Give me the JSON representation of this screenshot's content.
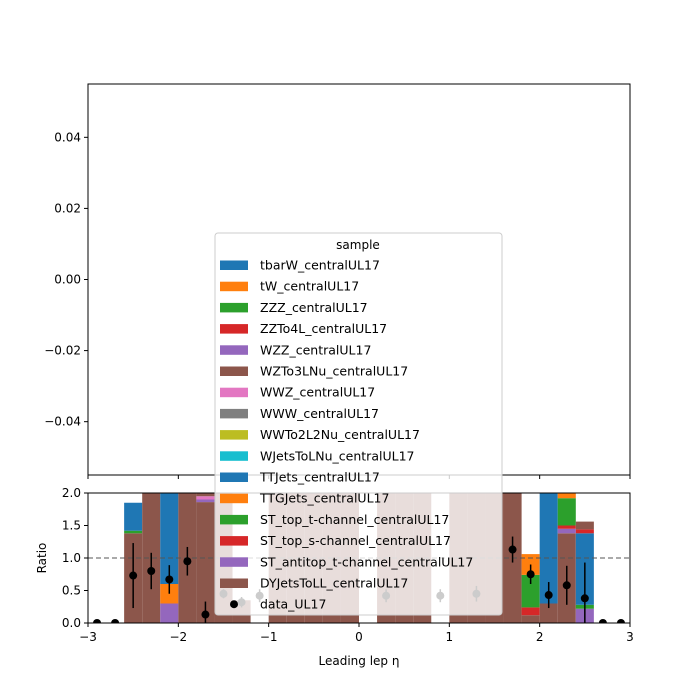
{
  "chart_data": [
    {
      "type": "bar",
      "panel": "main",
      "yticks": [
        -0.04,
        -0.02,
        0.0,
        0.02,
        0.04
      ],
      "ytick_labels": [
        "−0.04",
        "−0.02",
        "0.00",
        "0.02",
        "0.04"
      ],
      "ylim": [
        -0.055,
        0.055
      ],
      "xlim": [
        -3,
        3
      ],
      "legend": {
        "title": "sample",
        "placement": "lower-center",
        "entries": [
          {
            "label": "tbarW_centralUL17",
            "color": "#1f77b4",
            "kind": "patch"
          },
          {
            "label": "tW_centralUL17",
            "color": "#ff7f0e",
            "kind": "patch"
          },
          {
            "label": "ZZZ_centralUL17",
            "color": "#2ca02c",
            "kind": "patch"
          },
          {
            "label": "ZZTo4L_centralUL17",
            "color": "#d62728",
            "kind": "patch"
          },
          {
            "label": "WZZ_centralUL17",
            "color": "#9467bd",
            "kind": "patch"
          },
          {
            "label": "WZTo3LNu_centralUL17",
            "color": "#8c564b",
            "kind": "patch"
          },
          {
            "label": "WWZ_centralUL17",
            "color": "#e377c2",
            "kind": "patch"
          },
          {
            "label": "WWW_centralUL17",
            "color": "#7f7f7f",
            "kind": "patch"
          },
          {
            "label": "WWTo2L2Nu_centralUL17",
            "color": "#bcbd22",
            "kind": "patch"
          },
          {
            "label": "WJetsToLNu_centralUL17",
            "color": "#17becf",
            "kind": "patch"
          },
          {
            "label": "TTJets_centralUL17",
            "color": "#1f77b4",
            "kind": "patch"
          },
          {
            "label": "TTGJets_centralUL17",
            "color": "#ff7f0e",
            "kind": "patch"
          },
          {
            "label": "ST_top_t-channel_centralUL17",
            "color": "#2ca02c",
            "kind": "patch"
          },
          {
            "label": "ST_top_s-channel_centralUL17",
            "color": "#d62728",
            "kind": "patch"
          },
          {
            "label": "ST_antitop_t-channel_centralUL17",
            "color": "#9467bd",
            "kind": "patch"
          },
          {
            "label": "DYJetsToLL_centralUL17",
            "color": "#8c564b",
            "kind": "patch"
          },
          {
            "label": "data_UL17",
            "color": "#000000",
            "kind": "marker"
          }
        ]
      }
    },
    {
      "type": "bar",
      "panel": "ratio",
      "xlabel": "Leading lep η",
      "ylabel": "Ratio",
      "xlim": [
        -3,
        3
      ],
      "ylim": [
        0,
        2
      ],
      "xticks": [
        -3,
        -2,
        -1,
        0,
        1,
        2,
        3
      ],
      "xtick_labels": [
        "−3",
        "−2",
        "−1",
        "0",
        "1",
        "2",
        "3"
      ],
      "yticks": [
        0.0,
        0.5,
        1.0,
        1.5,
        2.0
      ],
      "ytick_labels": [
        "0.0",
        "0.5",
        "1.0",
        "1.5",
        "2.0"
      ],
      "reference_line": 1.0,
      "stacked_bins": [
        {
          "x0": -2.6,
          "x1": -2.4,
          "segments": [
            {
              "color": "#8c564b",
              "value": 1.38
            },
            {
              "color": "#2ca02c",
              "value": 0.04
            },
            {
              "color": "#1f77b4",
              "value": 0.43
            }
          ]
        },
        {
          "x0": -2.4,
          "x1": -2.2,
          "segments": [
            {
              "color": "#8c564b",
              "value": 2.0
            }
          ]
        },
        {
          "x0": -2.2,
          "x1": -2.0,
          "segments": [
            {
              "color": "#9467bd",
              "value": 0.3
            },
            {
              "color": "#ff7f0e",
              "value": 0.3
            },
            {
              "color": "#1f77b4",
              "value": 1.4
            }
          ]
        },
        {
          "x0": -2.0,
          "x1": -1.8,
          "segments": [
            {
              "color": "#8c564b",
              "value": 2.0
            }
          ]
        },
        {
          "x0": -1.8,
          "x1": -1.6,
          "segments": [
            {
              "color": "#8c564b",
              "value": 1.86
            },
            {
              "color": "#9467bd",
              "value": 0.04
            },
            {
              "color": "#e377c2",
              "value": 0.05
            },
            {
              "color": "#8c564b",
              "value": 0.05
            }
          ]
        },
        {
          "x0": -1.6,
          "x1": -1.4,
          "segments": [
            {
              "color": "#8c564b",
              "value": 2.0
            }
          ]
        },
        {
          "x0": -1.4,
          "x1": -1.2,
          "segments": [
            {
              "color": "#8c564b",
              "value": 0.35
            }
          ]
        },
        {
          "x0": -1.0,
          "x1": -0.8,
          "segments": [
            {
              "color": "#8c564b",
              "value": 2.0
            }
          ]
        },
        {
          "x0": -0.8,
          "x1": -0.6,
          "segments": [
            {
              "color": "#8c564b",
              "value": 2.0
            }
          ]
        },
        {
          "x0": -0.6,
          "x1": -0.4,
          "segments": [
            {
              "color": "#8c564b",
              "value": 2.0
            }
          ]
        },
        {
          "x0": -0.4,
          "x1": -0.2,
          "segments": [
            {
              "color": "#8c564b",
              "value": 2.0
            }
          ]
        },
        {
          "x0": -0.2,
          "x1": 0.0,
          "segments": [
            {
              "color": "#8c564b",
              "value": 2.0
            }
          ]
        },
        {
          "x0": 0.2,
          "x1": 0.4,
          "segments": [
            {
              "color": "#8c564b",
              "value": 2.0
            }
          ]
        },
        {
          "x0": 0.4,
          "x1": 0.6,
          "segments": [
            {
              "color": "#8c564b",
              "value": 2.0
            }
          ]
        },
        {
          "x0": 0.6,
          "x1": 0.8,
          "segments": [
            {
              "color": "#8c564b",
              "value": 2.0
            }
          ]
        },
        {
          "x0": 1.0,
          "x1": 1.2,
          "segments": [
            {
              "color": "#8c564b",
              "value": 2.0
            }
          ]
        },
        {
          "x0": 1.2,
          "x1": 1.4,
          "segments": [
            {
              "color": "#8c564b",
              "value": 2.0
            }
          ]
        },
        {
          "x0": 1.4,
          "x1": 1.6,
          "segments": [
            {
              "color": "#8c564b",
              "value": 2.0
            }
          ]
        },
        {
          "x0": 1.6,
          "x1": 1.8,
          "segments": [
            {
              "color": "#8c564b",
              "value": 2.0
            }
          ]
        },
        {
          "x0": 1.8,
          "x1": 2.0,
          "segments": [
            {
              "color": "#8c564b",
              "value": 0.12
            },
            {
              "color": "#9467bd",
              "value": 0.0
            },
            {
              "color": "#d62728",
              "value": 0.12
            },
            {
              "color": "#2ca02c",
              "value": 0.5
            },
            {
              "color": "#ff7f0e",
              "value": 0.32
            }
          ]
        },
        {
          "x0": 2.0,
          "x1": 2.2,
          "segments": [
            {
              "color": "#8c564b",
              "value": 0.3
            },
            {
              "color": "#1f77b4",
              "value": 1.7
            }
          ]
        },
        {
          "x0": 2.2,
          "x1": 2.4,
          "segments": [
            {
              "color": "#8c564b",
              "value": 1.38
            },
            {
              "color": "#9467bd",
              "value": 0.07
            },
            {
              "color": "#d62728",
              "value": 0.05
            },
            {
              "color": "#2ca02c",
              "value": 0.42
            },
            {
              "color": "#ff7f0e",
              "value": 0.08
            }
          ]
        },
        {
          "x0": 2.4,
          "x1": 2.6,
          "segments": [
            {
              "color": "#9467bd",
              "value": 0.22
            },
            {
              "color": "#2ca02c",
              "value": 0.06
            },
            {
              "color": "#1f77b4",
              "value": 1.1
            },
            {
              "color": "#d62728",
              "value": 0.06
            },
            {
              "color": "#8c564b",
              "value": 0.12
            }
          ]
        }
      ],
      "data_points": [
        {
          "x": -2.9,
          "y": 0.0,
          "err": 0.0
        },
        {
          "x": -2.7,
          "y": 0.0,
          "err": 0.0
        },
        {
          "x": -2.5,
          "y": 0.73,
          "err": 0.5
        },
        {
          "x": -2.3,
          "y": 0.8,
          "err": 0.28
        },
        {
          "x": -2.1,
          "y": 0.67,
          "err": 0.22
        },
        {
          "x": -1.9,
          "y": 0.95,
          "err": 0.22
        },
        {
          "x": -1.7,
          "y": 0.13,
          "err": 0.2
        },
        {
          "x": -1.5,
          "y": 0.45,
          "err": 0.07
        },
        {
          "x": -1.3,
          "y": 0.32,
          "err": 0.08
        },
        {
          "x": -1.1,
          "y": 0.42,
          "err": 0.1
        },
        {
          "x": 0.3,
          "y": 0.42,
          "err": 0.1
        },
        {
          "x": 0.9,
          "y": 0.42,
          "err": 0.1
        },
        {
          "x": 1.3,
          "y": 0.45,
          "err": 0.12
        },
        {
          "x": 1.7,
          "y": 1.13,
          "err": 0.2
        },
        {
          "x": 1.9,
          "y": 0.75,
          "err": 0.15
        },
        {
          "x": 2.1,
          "y": 0.43,
          "err": 0.2
        },
        {
          "x": 2.3,
          "y": 0.58,
          "err": 0.3
        },
        {
          "x": 2.5,
          "y": 0.38,
          "err": 0.55
        },
        {
          "x": 2.7,
          "y": 0.0,
          "err": 0.0
        },
        {
          "x": 2.9,
          "y": 0.0,
          "err": 0.0
        }
      ]
    }
  ]
}
